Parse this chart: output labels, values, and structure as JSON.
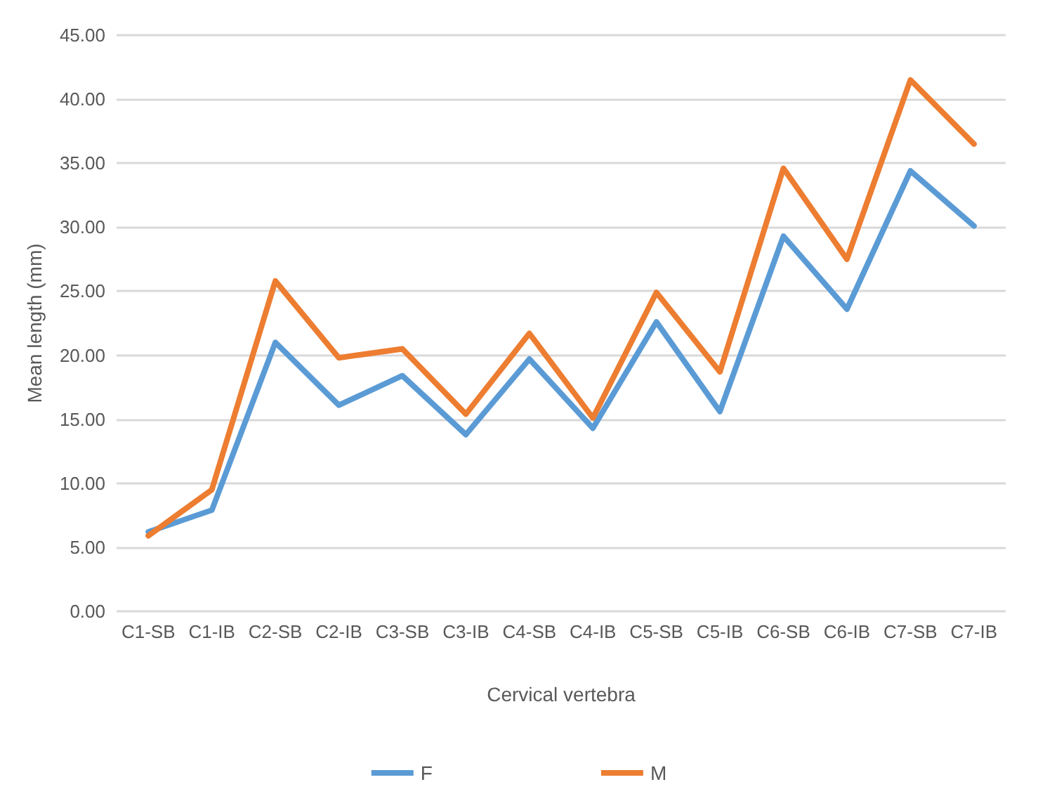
{
  "chart_data": {
    "type": "line",
    "xlabel": "Cervical vertebra",
    "ylabel": "Mean length (mm)",
    "categories": [
      "C1-SB",
      "C1-IB",
      "C2-SB",
      "C2-IB",
      "C3-SB",
      "C3-IB",
      "C4-SB",
      "C4-IB",
      "C5-SB",
      "C5-IB",
      "C6-SB",
      "C6-IB",
      "C7-SB",
      "C7-IB"
    ],
    "series": [
      {
        "name": "F",
        "color": "#5b9bd5",
        "values": [
          6.2,
          7.9,
          21.0,
          16.1,
          18.4,
          13.8,
          19.7,
          14.3,
          22.6,
          15.6,
          29.3,
          23.6,
          34.4,
          30.1
        ]
      },
      {
        "name": "M",
        "color": "#ed7d31",
        "values": [
          5.9,
          9.5,
          25.8,
          19.8,
          20.5,
          15.4,
          21.7,
          15.1,
          24.9,
          18.7,
          34.6,
          27.5,
          41.5,
          36.5
        ]
      }
    ],
    "ylim": [
      0,
      45
    ],
    "yticks": [
      {
        "value": 0,
        "label": "0.00"
      },
      {
        "value": 5,
        "label": "5.00"
      },
      {
        "value": 10,
        "label": "10.00"
      },
      {
        "value": 15,
        "label": "15.00"
      },
      {
        "value": 20,
        "label": "20.00"
      },
      {
        "value": 25,
        "label": "25.00"
      },
      {
        "value": 30,
        "label": "30.00"
      },
      {
        "value": 35,
        "label": "35.00"
      },
      {
        "value": 40,
        "label": "40.00"
      },
      {
        "value": 45,
        "label": "45.00"
      }
    ],
    "grid": "y",
    "legend": "bottom",
    "marker": "none",
    "line_style": "solid"
  }
}
